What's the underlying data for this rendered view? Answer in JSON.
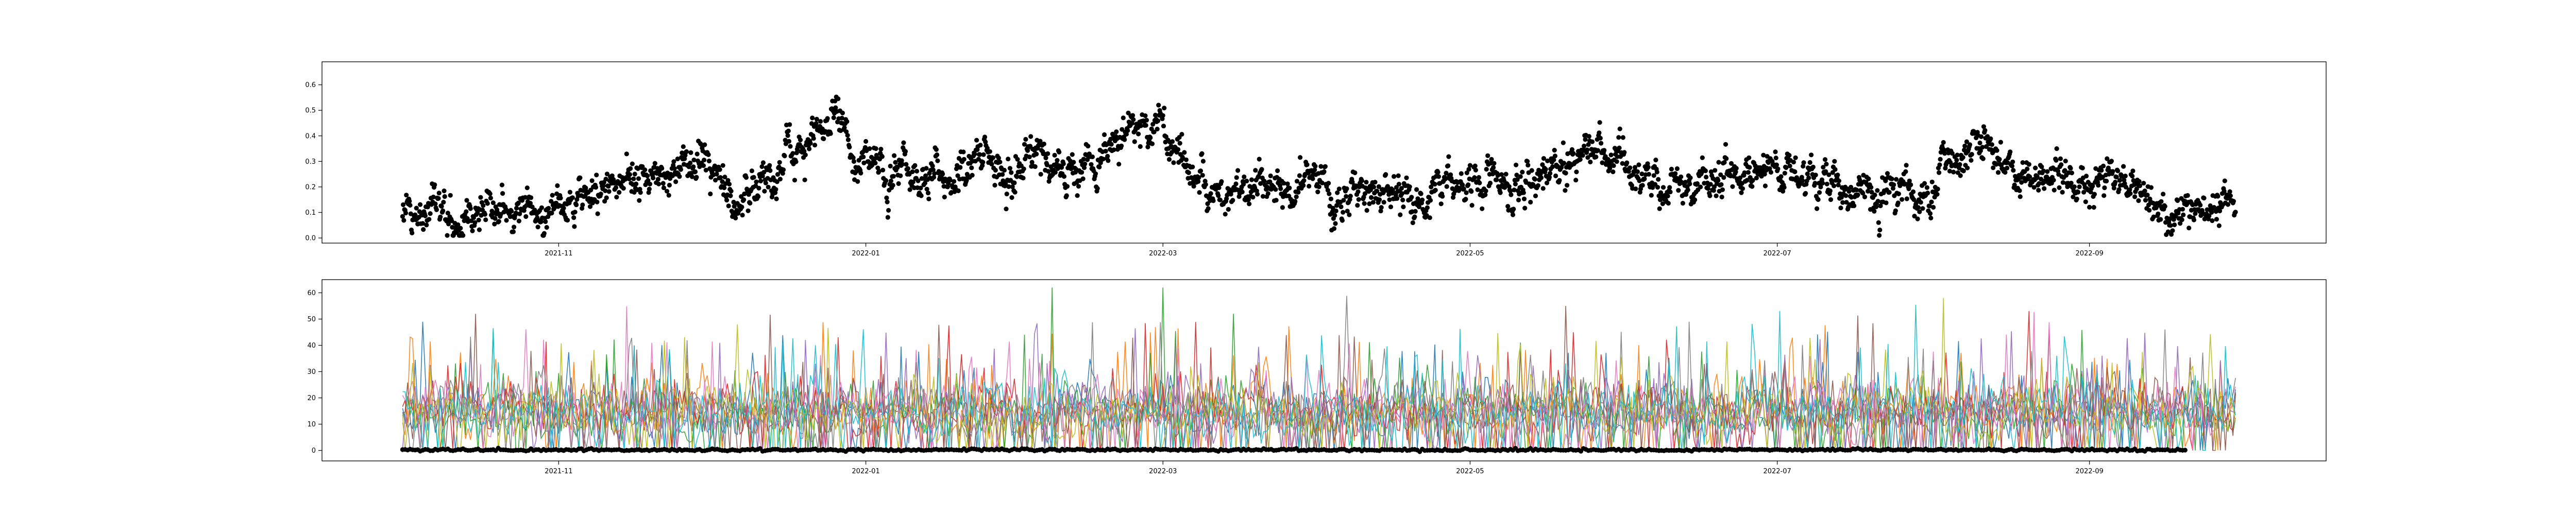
{
  "chart_data": [
    {
      "type": "scatter",
      "marker_color": "#000000",
      "xlim": [
        "2021-09-15",
        "2022-10-18"
      ],
      "ylim": [
        -0.02,
        0.69
      ],
      "x_ticks": [
        "2021-11",
        "2022-01",
        "2022-03",
        "2022-05",
        "2022-07",
        "2022-09"
      ],
      "y_ticks": [
        "0.0",
        "0.1",
        "0.2",
        "0.3",
        "0.4",
        "0.5",
        "0.6"
      ],
      "grid": false,
      "series": [
        {
          "x_start": "2021-10-01",
          "x_end": "2022-09-30",
          "sampling": "3-hourly",
          "approximate_daily_level": [
            [
              "2021-10-01",
              0.1
            ],
            [
              "2021-10-15",
              0.13
            ],
            [
              "2021-11-01",
              0.12
            ],
            [
              "2021-11-15",
              0.23
            ],
            [
              "2021-12-01",
              0.3
            ],
            [
              "2021-12-05",
              0.15
            ],
            [
              "2021-12-15",
              0.3
            ],
            [
              "2021-12-25",
              0.45
            ],
            [
              "2022-01-01",
              0.3
            ],
            [
              "2022-01-15",
              0.22
            ],
            [
              "2022-02-01",
              0.32
            ],
            [
              "2022-02-15",
              0.3
            ],
            [
              "2022-03-01",
              0.45
            ],
            [
              "2022-03-10",
              0.22
            ],
            [
              "2022-04-01",
              0.2
            ],
            [
              "2022-04-15",
              0.17
            ],
            [
              "2022-05-01",
              0.2
            ],
            [
              "2022-05-15",
              0.23
            ],
            [
              "2022-05-25",
              0.35
            ],
            [
              "2022-06-10",
              0.2
            ],
            [
              "2022-07-01",
              0.3
            ],
            [
              "2022-07-15",
              0.18
            ],
            [
              "2022-08-01",
              0.17
            ],
            [
              "2022-08-10",
              0.38
            ],
            [
              "2022-08-20",
              0.22
            ],
            [
              "2022-09-01",
              0.25
            ],
            [
              "2022-09-15",
              0.12
            ],
            [
              "2022-09-30",
              0.16
            ]
          ]
        }
      ]
    },
    {
      "type": "line",
      "line_colors": [
        "#1f77b4",
        "#ff7f0e",
        "#2ca02c",
        "#d62728",
        "#9467bd",
        "#8c564b",
        "#e377c2",
        "#7f7f7f",
        "#bcbd22",
        "#17becf"
      ],
      "xlim": [
        "2021-09-15",
        "2022-10-18"
      ],
      "ylim": [
        -4,
        65
      ],
      "x_ticks": [
        "2021-11",
        "2022-01",
        "2022-03",
        "2022-05",
        "2022-07",
        "2022-09"
      ],
      "y_ticks": [
        "0",
        "10",
        "20",
        "30",
        "40",
        "50",
        "60"
      ],
      "grid": false,
      "series_count": 10,
      "x_start": "2021-10-01",
      "x_end": "2022-09-30",
      "value_range": [
        0,
        62
      ],
      "peaks": [
        [
          "2022-02-07",
          62
        ],
        [
          "2022-03-01",
          62
        ],
        [
          "2022-08-03",
          58
        ],
        [
          "2022-05-20",
          55
        ],
        [
          "2022-08-20",
          53
        ],
        [
          "2022-03-15",
          52
        ]
      ],
      "baseline_marker_series": {
        "marker_color": "#000000",
        "value": 0.2,
        "x_start": "2021-10-01",
        "x_end": "2022-09-20"
      }
    }
  ]
}
